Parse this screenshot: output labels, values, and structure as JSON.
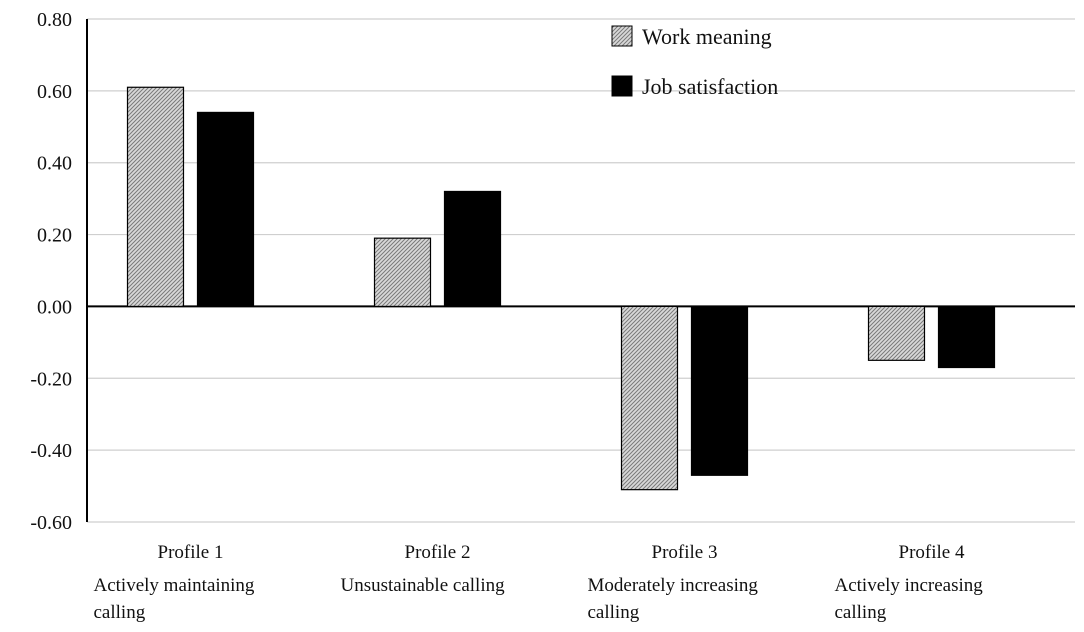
{
  "chart_data": {
    "type": "bar",
    "categories": [
      {
        "title": "Profile 1",
        "subtitle_lines": [
          "Actively maintaining",
          "calling"
        ]
      },
      {
        "title": "Profile 2",
        "subtitle_lines": [
          "Unsustainable calling"
        ]
      },
      {
        "title": "Profile 3",
        "subtitle_lines": [
          "Moderately increasing",
          "calling"
        ]
      },
      {
        "title": "Profile 4",
        "subtitle_lines": [
          "Actively increasing",
          "calling"
        ]
      }
    ],
    "series": [
      {
        "name": "Work meaning",
        "values": [
          0.61,
          0.19,
          -0.51,
          -0.15
        ],
        "fill": "hatched-gray"
      },
      {
        "name": "Job satisfaction",
        "values": [
          0.54,
          0.32,
          -0.47,
          -0.17
        ],
        "fill": "#000000"
      }
    ],
    "ylim": [
      -0.6,
      0.8
    ],
    "yticks": [
      "0.80",
      "0.60",
      "0.40",
      "0.20",
      "0.00",
      "-0.20",
      "-0.40",
      "-0.60"
    ],
    "ytick_values": [
      0.8,
      0.6,
      0.4,
      0.2,
      0.0,
      -0.2,
      -0.4,
      -0.6
    ],
    "grid": true,
    "legend_position": "top-right",
    "title": "",
    "xlabel": "",
    "ylabel": ""
  }
}
